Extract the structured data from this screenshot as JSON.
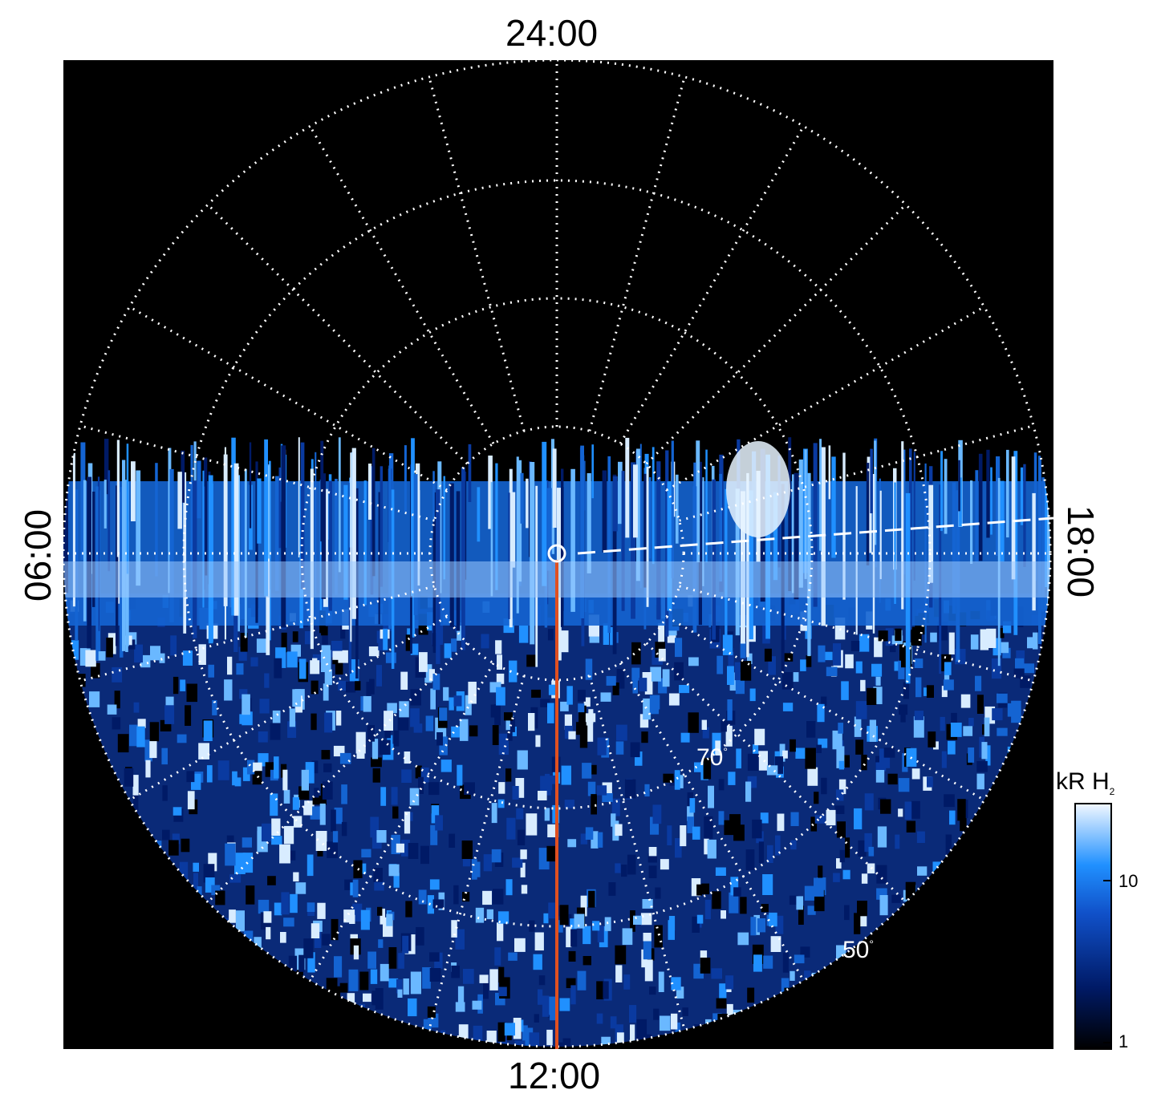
{
  "local_time_labels": {
    "top": "24:00",
    "bottom": "12:00",
    "left": "06:00",
    "right": "18:00"
  },
  "latitude_labels": {
    "lat70": "70",
    "lat50": "50",
    "degree": "°"
  },
  "colorbar": {
    "title_main": "kR H",
    "title_sub": "2",
    "tick_high": "10",
    "tick_low": "1",
    "scale": "log",
    "range": [
      1,
      30
    ]
  },
  "colors": {
    "background": "#000000",
    "grid": "#ffffff",
    "meridian_line": "#e05020",
    "emission_dark": "#001a66",
    "emission_mid": "#1e78e6",
    "emission_bright": "#cde8ff"
  },
  "icons": {
    "pole_marker": "circle-icon"
  }
}
